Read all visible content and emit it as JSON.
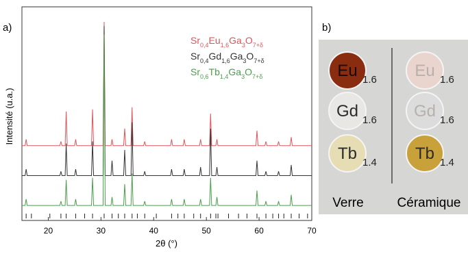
{
  "chart_data": {
    "type": "line",
    "panel_label": "a)",
    "x_label": "2θ (°)",
    "y_label": "Intensité (u.a.)",
    "xlim": [
      15,
      70
    ],
    "xticks": [
      20,
      30,
      40,
      50,
      60,
      70
    ],
    "ylim": [
      0,
      100
    ],
    "x": [
      15,
      15.6,
      15.8,
      16,
      22.2,
      22.4,
      22.6,
      23.2,
      23.4,
      23.6,
      25,
      25.2,
      25.4,
      28.2,
      28.4,
      28.6,
      30.4,
      30.6,
      30.8,
      31.9,
      32.1,
      32.3,
      34.3,
      34.5,
      34.7,
      35.7,
      35.9,
      36.1,
      38.1,
      38.3,
      38.5,
      43.2,
      43.4,
      43.6,
      45.6,
      45.8,
      46,
      48.7,
      48.9,
      49.1,
      50.6,
      50.8,
      51,
      51.8,
      52,
      52.2,
      59.4,
      59.6,
      59.8,
      61.1,
      61.3,
      61.5,
      63.5,
      63.7,
      63.9,
      65.9,
      66.1,
      66.3,
      70
    ],
    "series": [
      {
        "name": "Sr0,4Eu1,6Ga3O7+δ",
        "color": "#e0535a",
        "values": [
          35,
          35,
          38,
          35,
          35,
          37,
          35,
          35,
          51,
          35,
          35,
          38,
          35,
          35,
          52,
          35,
          35,
          93,
          35,
          35,
          38,
          35,
          35,
          43,
          35,
          35,
          53,
          35,
          35,
          37,
          35,
          35,
          38,
          35,
          35,
          38,
          35,
          35,
          38,
          35,
          35,
          50,
          35,
          35,
          38,
          35,
          35,
          42,
          35,
          35,
          37,
          35,
          35,
          37,
          35,
          35,
          39,
          35,
          35
        ]
      },
      {
        "name": "Sr0,4Gd1,6Ga3O7+δ",
        "color": "#333333",
        "values": [
          21,
          21,
          24,
          21,
          21,
          23,
          21,
          21,
          36,
          21,
          21,
          24,
          21,
          21,
          37,
          21,
          21,
          91,
          21,
          21,
          28,
          21,
          21,
          33,
          21,
          21,
          46,
          21,
          21,
          23,
          21,
          21,
          24,
          21,
          21,
          24,
          21,
          21,
          25,
          21,
          21,
          43,
          21,
          21,
          25,
          21,
          21,
          28,
          21,
          21,
          23,
          21,
          21,
          23,
          21,
          21,
          26,
          21,
          21
        ]
      },
      {
        "name": "Sr0,6Tb1,4Ga3O7+δ",
        "color": "#4a9e4a",
        "values": [
          7,
          7,
          10,
          7,
          7,
          9,
          7,
          7,
          19,
          7,
          7,
          10,
          7,
          7,
          20,
          7,
          7,
          87,
          7,
          7,
          11,
          7,
          7,
          17,
          7,
          7,
          22,
          7,
          7,
          9,
          7,
          7,
          10,
          7,
          7,
          10,
          7,
          7,
          10,
          7,
          7,
          20,
          7,
          7,
          11,
          7,
          7,
          14,
          7,
          7,
          9,
          7,
          7,
          9,
          7,
          7,
          12,
          7,
          7
        ]
      }
    ],
    "reference_peaks": [
      15.8,
      16.8,
      20.3,
      22.4,
      23.4,
      25.2,
      26.9,
      28.4,
      30.6,
      32.1,
      33.3,
      34.5,
      35.9,
      36.9,
      38.3,
      40.5,
      43.4,
      44.6,
      45.8,
      47.6,
      48.9,
      50.8,
      51.8,
      52.2,
      54.2,
      56.1,
      57.7,
      59.6,
      61.3,
      62.6,
      63.7,
      64.7,
      66.1,
      67.6,
      69.2
    ]
  },
  "photo": {
    "panel_label": "b)",
    "columns": [
      "Verre",
      "Céramique"
    ],
    "samples": [
      {
        "element": "Eu",
        "index": "1.6"
      },
      {
        "element": "Gd",
        "index": "1.6"
      },
      {
        "element": "Tb",
        "index": "1.4"
      },
      {
        "element": "Eu",
        "index": "1.6"
      },
      {
        "element": "Gd",
        "index": "1.6"
      },
      {
        "element": "Tb",
        "index": "1.4"
      }
    ]
  }
}
